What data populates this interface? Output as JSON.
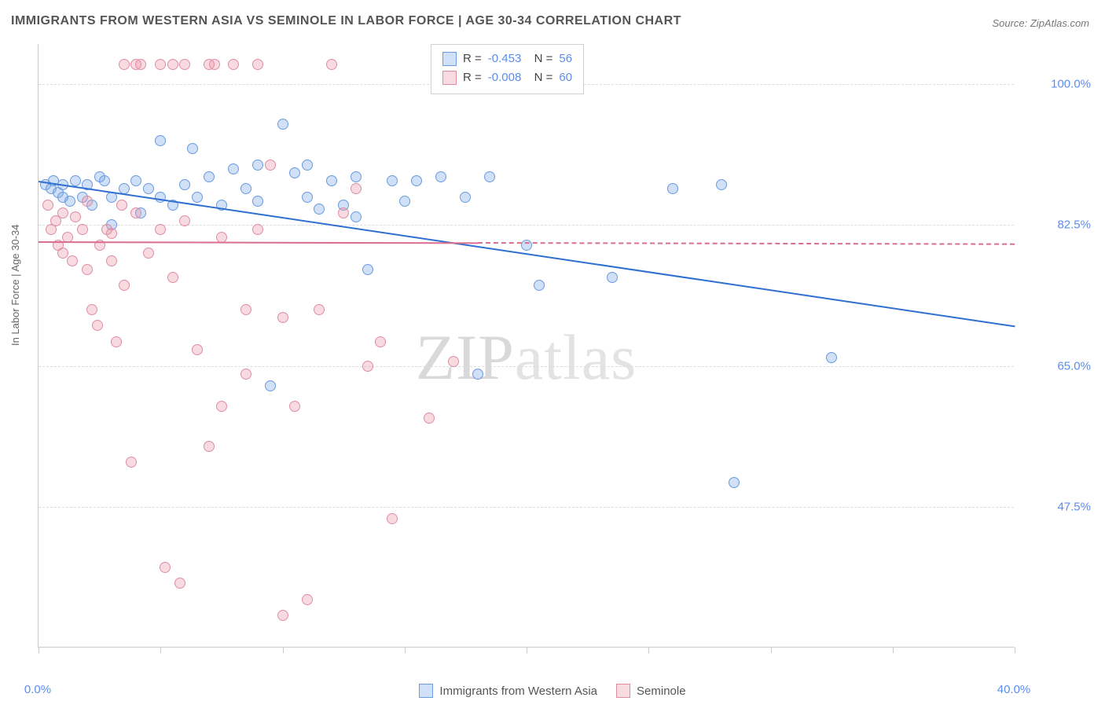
{
  "title": "IMMIGRANTS FROM WESTERN ASIA VS SEMINOLE IN LABOR FORCE | AGE 30-34 CORRELATION CHART",
  "source": "Source: ZipAtlas.com",
  "ylabel": "In Labor Force | Age 30-34",
  "watermark_a": "ZIP",
  "watermark_b": "atlas",
  "chart": {
    "type": "scatter",
    "xlim": [
      0,
      40
    ],
    "ylim": [
      30,
      105
    ],
    "yticks": [
      47.5,
      65.0,
      82.5,
      100.0
    ],
    "ytick_labels": [
      "47.5%",
      "65.0%",
      "82.5%",
      "100.0%"
    ],
    "xticks": [
      0,
      5,
      10,
      15,
      20,
      25,
      30,
      35,
      40
    ],
    "xtick_labels_shown": {
      "0": "0.0%",
      "40": "40.0%"
    },
    "grid_color": "#dcdcdc",
    "axis_color": "#c9c9c9",
    "background_color": "#ffffff",
    "label_color": "#5b8def",
    "point_radius": 7
  },
  "series": [
    {
      "name": "Immigrants from Western Asia",
      "fill": "rgba(120,165,230,0.35)",
      "stroke": "#6a9ae0",
      "line_color": "#2f6fd0",
      "line_width": 2.5,
      "line_dash": "solid",
      "R": "-0.453",
      "N": "56",
      "trend": {
        "x1": 0,
        "y1": 88.0,
        "x2": 40,
        "y2": 70.0
      },
      "points": [
        [
          0.3,
          87.5
        ],
        [
          0.5,
          87.0
        ],
        [
          0.6,
          88.0
        ],
        [
          0.8,
          86.5
        ],
        [
          1.0,
          87.5
        ],
        [
          1.0,
          86.0
        ],
        [
          1.3,
          85.5
        ],
        [
          1.5,
          88.0
        ],
        [
          1.8,
          86.0
        ],
        [
          2.0,
          87.5
        ],
        [
          2.2,
          85.0
        ],
        [
          2.5,
          88.5
        ],
        [
          2.7,
          88.0
        ],
        [
          3.0,
          86.0
        ],
        [
          3.0,
          82.5
        ],
        [
          3.5,
          87.0
        ],
        [
          4.0,
          88.0
        ],
        [
          4.2,
          84.0
        ],
        [
          4.5,
          87.0
        ],
        [
          5.0,
          86.0
        ],
        [
          5.0,
          93.0
        ],
        [
          5.5,
          85.0
        ],
        [
          6.0,
          87.5
        ],
        [
          6.3,
          92.0
        ],
        [
          6.5,
          86.0
        ],
        [
          7.0,
          88.5
        ],
        [
          7.5,
          85.0
        ],
        [
          8.0,
          89.5
        ],
        [
          8.5,
          87.0
        ],
        [
          9.0,
          90.0
        ],
        [
          9.0,
          85.5
        ],
        [
          9.5,
          62.5
        ],
        [
          10.0,
          95.0
        ],
        [
          10.5,
          89.0
        ],
        [
          11.0,
          86.0
        ],
        [
          11.0,
          90.0
        ],
        [
          11.5,
          84.5
        ],
        [
          12.0,
          88.0
        ],
        [
          12.5,
          85.0
        ],
        [
          13.0,
          88.5
        ],
        [
          13.0,
          83.5
        ],
        [
          13.5,
          77.0
        ],
        [
          14.5,
          88.0
        ],
        [
          15.0,
          85.5
        ],
        [
          15.5,
          88.0
        ],
        [
          16.5,
          88.5
        ],
        [
          17.5,
          86.0
        ],
        [
          18.0,
          64.0
        ],
        [
          18.5,
          88.5
        ],
        [
          20.0,
          80.0
        ],
        [
          20.5,
          75.0
        ],
        [
          23.5,
          76.0
        ],
        [
          26.0,
          87.0
        ],
        [
          28.0,
          87.5
        ],
        [
          28.5,
          50.5
        ],
        [
          32.5,
          66.0
        ]
      ]
    },
    {
      "name": "Seminole",
      "fill": "rgba(235,150,170,0.35)",
      "stroke": "#e08da2",
      "line_color": "#d96f8d",
      "line_width": 2,
      "line_dash": "4 4",
      "R": "-0.008",
      "N": "60",
      "trend": {
        "x1": 0,
        "y1": 80.5,
        "x2": 40,
        "y2": 80.2
      },
      "trend_solid_until": 18,
      "points": [
        [
          0.4,
          85.0
        ],
        [
          0.5,
          82.0
        ],
        [
          0.7,
          83.0
        ],
        [
          0.8,
          80.0
        ],
        [
          1.0,
          84.0
        ],
        [
          1.0,
          79.0
        ],
        [
          1.2,
          81.0
        ],
        [
          1.4,
          78.0
        ],
        [
          1.5,
          83.5
        ],
        [
          1.8,
          82.0
        ],
        [
          2.0,
          77.0
        ],
        [
          2.0,
          85.5
        ],
        [
          2.2,
          72.0
        ],
        [
          2.4,
          70.0
        ],
        [
          2.5,
          80.0
        ],
        [
          2.8,
          82.0
        ],
        [
          3.0,
          78.0
        ],
        [
          3.0,
          81.5
        ],
        [
          3.2,
          68.0
        ],
        [
          3.4,
          85.0
        ],
        [
          3.5,
          75.0
        ],
        [
          3.5,
          102.5
        ],
        [
          3.8,
          53.0
        ],
        [
          4.0,
          84.0
        ],
        [
          4.0,
          102.5
        ],
        [
          4.2,
          102.5
        ],
        [
          4.5,
          79.0
        ],
        [
          5.0,
          82.0
        ],
        [
          5.0,
          102.5
        ],
        [
          5.2,
          40.0
        ],
        [
          5.5,
          76.0
        ],
        [
          5.5,
          102.5
        ],
        [
          5.8,
          38.0
        ],
        [
          6.0,
          83.0
        ],
        [
          6.0,
          102.5
        ],
        [
          6.5,
          67.0
        ],
        [
          7.0,
          102.5
        ],
        [
          7.0,
          55.0
        ],
        [
          7.2,
          102.5
        ],
        [
          7.5,
          81.0
        ],
        [
          7.5,
          60.0
        ],
        [
          8.0,
          102.5
        ],
        [
          8.5,
          64.0
        ],
        [
          8.5,
          72.0
        ],
        [
          9.0,
          102.5
        ],
        [
          9.0,
          82.0
        ],
        [
          9.5,
          90.0
        ],
        [
          10.0,
          71.0
        ],
        [
          10.0,
          34.0
        ],
        [
          10.5,
          60.0
        ],
        [
          11.0,
          36.0
        ],
        [
          11.5,
          72.0
        ],
        [
          12.0,
          102.5
        ],
        [
          12.5,
          84.0
        ],
        [
          13.0,
          87.0
        ],
        [
          13.5,
          65.0
        ],
        [
          14.0,
          68.0
        ],
        [
          14.5,
          46.0
        ],
        [
          16.0,
          58.5
        ],
        [
          17.0,
          65.5
        ]
      ]
    }
  ]
}
